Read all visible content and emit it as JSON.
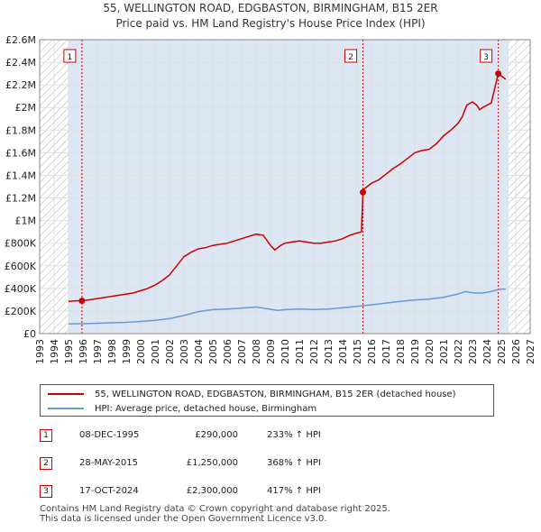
{
  "title_line1": "55, WELLINGTON ROAD, EDGBASTON, BIRMINGHAM, B15 2ER",
  "title_line2": "Price paid vs. HM Land Registry's House Price Index (HPI)",
  "colors": {
    "property": "#cc0000",
    "hpi": "#6a9ad4",
    "band": "#dde6f3",
    "hatch": "#b0b0b0",
    "grid": "#e0e0e0",
    "marker_line": "#cc0000"
  },
  "chart_data": {
    "type": "line",
    "xlim": [
      1993,
      2027
    ],
    "ylim": [
      0,
      2600000
    ],
    "x_ticks": [
      1993,
      1994,
      1995,
      1996,
      1997,
      1998,
      1999,
      2000,
      2001,
      2002,
      2003,
      2004,
      2005,
      2006,
      2007,
      2008,
      2009,
      2010,
      2011,
      2012,
      2013,
      2014,
      2015,
      2016,
      2017,
      2018,
      2019,
      2020,
      2021,
      2022,
      2023,
      2024,
      2025,
      2026,
      2027
    ],
    "y_ticks": [
      {
        "value": 0,
        "label": "£0"
      },
      {
        "value": 200000,
        "label": "£200K"
      },
      {
        "value": 400000,
        "label": "£400K"
      },
      {
        "value": 600000,
        "label": "£600K"
      },
      {
        "value": 800000,
        "label": "£800K"
      },
      {
        "value": 1000000,
        "label": "£1M"
      },
      {
        "value": 1200000,
        "label": "£1.2M"
      },
      {
        "value": 1400000,
        "label": "£1.4M"
      },
      {
        "value": 1600000,
        "label": "£1.6M"
      },
      {
        "value": 1800000,
        "label": "£1.8M"
      },
      {
        "value": 2000000,
        "label": "£2M"
      },
      {
        "value": 2200000,
        "label": "£2.2M"
      },
      {
        "value": 2400000,
        "label": "£2.4M"
      },
      {
        "value": 2600000,
        "label": "£2.6M"
      }
    ],
    "data_range": [
      1995,
      2025.5
    ],
    "hatched_regions": [
      [
        1993,
        1995
      ],
      [
        2025.5,
        2027
      ]
    ],
    "series": [
      {
        "name": "55, WELLINGTON ROAD, EDGBASTON, BIRMINGHAM, B15 2ER (detached house)",
        "color": "#cc0000",
        "x": [
          1995.0,
          1995.5,
          1995.93,
          1996.5,
          1997.0,
          1997.5,
          1998.0,
          1998.5,
          1999.0,
          1999.5,
          2000.0,
          2000.5,
          2001.0,
          2001.5,
          2002.0,
          2002.5,
          2003.0,
          2003.5,
          2004.0,
          2004.5,
          2005.0,
          2005.5,
          2006.0,
          2006.5,
          2007.0,
          2007.5,
          2008.0,
          2008.5,
          2009.0,
          2009.3,
          2009.7,
          2010.0,
          2010.5,
          2011.0,
          2011.5,
          2012.0,
          2012.5,
          2013.0,
          2013.5,
          2014.0,
          2014.5,
          2015.0,
          2015.3,
          2015.41,
          2015.5,
          2016.0,
          2016.5,
          2017.0,
          2017.5,
          2018.0,
          2018.5,
          2019.0,
          2019.5,
          2020.0,
          2020.5,
          2021.0,
          2021.5,
          2022.0,
          2022.3,
          2022.6,
          2023.0,
          2023.3,
          2023.5,
          2023.7,
          2024.0,
          2024.3,
          2024.6,
          2024.79,
          2025.0,
          2025.3
        ],
        "values": [
          285000,
          290000,
          290000,
          300000,
          310000,
          320000,
          330000,
          340000,
          350000,
          360000,
          380000,
          400000,
          430000,
          470000,
          520000,
          600000,
          680000,
          720000,
          750000,
          760000,
          780000,
          790000,
          800000,
          820000,
          840000,
          860000,
          880000,
          870000,
          780000,
          740000,
          780000,
          800000,
          810000,
          820000,
          810000,
          800000,
          800000,
          810000,
          820000,
          840000,
          870000,
          890000,
          900000,
          1250000,
          1280000,
          1330000,
          1360000,
          1410000,
          1460000,
          1500000,
          1550000,
          1600000,
          1620000,
          1630000,
          1680000,
          1750000,
          1800000,
          1860000,
          1920000,
          2020000,
          2050000,
          2020000,
          1980000,
          2000000,
          2020000,
          2040000,
          2200000,
          2300000,
          2280000,
          2250000
        ]
      },
      {
        "name": "HPI: Average price, detached house, Birmingham",
        "color": "#6a9ad4",
        "x": [
          1995.0,
          1996.0,
          1997.0,
          1998.0,
          1999.0,
          2000.0,
          2001.0,
          2002.0,
          2003.0,
          2004.0,
          2005.0,
          2006.0,
          2007.0,
          2008.0,
          2009.0,
          2009.5,
          2010.0,
          2011.0,
          2012.0,
          2013.0,
          2014.0,
          2015.0,
          2016.0,
          2017.0,
          2018.0,
          2019.0,
          2020.0,
          2021.0,
          2022.0,
          2022.5,
          2023.0,
          2023.5,
          2024.0,
          2024.5,
          2025.0,
          2025.3
        ],
        "values": [
          85000,
          88000,
          92000,
          96000,
          100000,
          108000,
          118000,
          132000,
          160000,
          195000,
          212000,
          218000,
          225000,
          235000,
          215000,
          205000,
          212000,
          218000,
          214000,
          218000,
          228000,
          242000,
          255000,
          270000,
          285000,
          298000,
          305000,
          322000,
          350000,
          372000,
          362000,
          358000,
          365000,
          380000,
          395000,
          392000
        ]
      }
    ],
    "sales": [
      {
        "label": "1",
        "x": 1995.93,
        "value": 290000
      },
      {
        "label": "2",
        "x": 2015.41,
        "value": 1250000
      },
      {
        "label": "3",
        "x": 2024.79,
        "value": 2300000
      }
    ]
  },
  "legend": {
    "property_label": "55, WELLINGTON ROAD, EDGBASTON, BIRMINGHAM, B15 2ER (detached house)",
    "hpi_label": "HPI: Average price, detached house, Birmingham"
  },
  "sales_table": [
    {
      "num": "1",
      "date": "08-DEC-1995",
      "price": "£290,000",
      "hpi": "233% ↑ HPI"
    },
    {
      "num": "2",
      "date": "28-MAY-2015",
      "price": "£1,250,000",
      "hpi": "368% ↑ HPI"
    },
    {
      "num": "3",
      "date": "17-OCT-2024",
      "price": "£2,300,000",
      "hpi": "417% ↑ HPI"
    }
  ],
  "footer_line1": "Contains HM Land Registry data © Crown copyright and database right 2025.",
  "footer_line2": "This data is licensed under the Open Government Licence v3.0."
}
